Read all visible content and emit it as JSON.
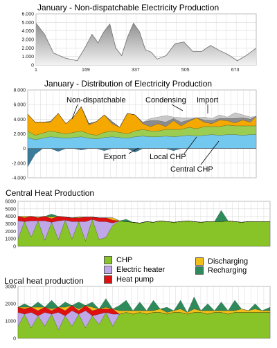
{
  "titles": {
    "t1": "January - Non-dispatchable Electricity Production",
    "t2": "January - Distribution of Electricity Production",
    "t3": "Central Heat Production",
    "t4": "Local heat production"
  },
  "colors": {
    "nondisp_line": "#777777",
    "nondisp_fill_dark": "#909090",
    "nondisp_fill_light": "#f2f2f2",
    "nondispatchable": "#f5a800",
    "condensing": "#8c8c8c",
    "import": "#c8c8c8",
    "local_chp": "#9acd52",
    "central_chp": "#73c8f0",
    "export": "#3a7a9a",
    "chp": "#88c428",
    "electric_heater": "#c0a8e8",
    "heat_pump": "#e01010",
    "discharging": "#f2be1a",
    "recharging": "#2e8a5a",
    "grid": "#d0d0d0"
  },
  "legend": [
    {
      "key": "chp",
      "label": "CHP"
    },
    {
      "key": "electric_heater",
      "label": "Electric heater"
    },
    {
      "key": "heat_pump",
      "label": "Heat pump"
    },
    {
      "key": "discharging",
      "label": "Discharging"
    },
    {
      "key": "recharging",
      "label": "Recharging"
    }
  ],
  "chart_data": [
    {
      "id": "c1",
      "type": "area",
      "title": "January - Non-dispatchable Electricity Production",
      "x_ticks": [
        "1",
        "169",
        "337",
        "505",
        "673"
      ],
      "y_ticks": [
        "0",
        "1.000",
        "2.000",
        "3.000",
        "4.000",
        "5.000",
        "6.000"
      ],
      "xlim": [
        1,
        744
      ],
      "ylim": [
        0,
        6000
      ],
      "grid": true,
      "series": [
        {
          "key": "nondisp",
          "x": [
            1,
            30,
            60,
            100,
            140,
            169,
            190,
            210,
            230,
            250,
            270,
            290,
            310,
            330,
            350,
            370,
            390,
            410,
            440,
            470,
            500,
            530,
            560,
            590,
            620,
            650,
            680,
            710,
            744
          ],
          "values": [
            4900,
            3600,
            1400,
            800,
            500,
            2200,
            3600,
            2600,
            3900,
            4800,
            2000,
            1100,
            3300,
            4900,
            3900,
            1800,
            1500,
            700,
            1100,
            2500,
            2700,
            1600,
            1600,
            2300,
            1700,
            1200,
            500,
            1100,
            2000
          ]
        }
      ]
    },
    {
      "id": "c2",
      "type": "area",
      "title": "January - Distribution of Electricity Production",
      "y_ticks": [
        "-4.000",
        "-2.000",
        "0",
        "2.000",
        "4.000",
        "6.000",
        "8.000"
      ],
      "xlim": [
        1,
        744
      ],
      "ylim": [
        -4000,
        8000
      ],
      "grid": true,
      "annotations": [
        "Non-dispatchable",
        "Condensing",
        "Import",
        "Export",
        "Local CHP",
        "Central CHP"
      ],
      "x": [
        1,
        25,
        50,
        75,
        100,
        125,
        150,
        175,
        200,
        225,
        250,
        275,
        300,
        325,
        350,
        375,
        400,
        425,
        450,
        475,
        500,
        525,
        550,
        575,
        600,
        625,
        650,
        675,
        700,
        725,
        744
      ],
      "series": [
        {
          "key": "central_chp",
          "values": [
            1500,
            1200,
            1400,
            1600,
            1500,
            1400,
            1500,
            1600,
            1400,
            1300,
            1500,
            1600,
            1500,
            1400,
            1600,
            1700,
            1600,
            1600,
            1700,
            1600,
            1700,
            1800,
            1700,
            1800,
            1900,
            1800,
            1900,
            1900,
            1800,
            1900,
            1900
          ]
        },
        {
          "key": "local_chp",
          "values": [
            900,
            600,
            700,
            800,
            700,
            600,
            700,
            800,
            600,
            500,
            700,
            800,
            700,
            600,
            800,
            900,
            800,
            800,
            900,
            1000,
            900,
            1100,
            1000,
            1200,
            1100,
            1200,
            1300,
            1200,
            1300,
            1200,
            1200
          ]
        },
        {
          "key": "nondispatchable",
          "values": [
            2300,
            1800,
            1500,
            1200,
            2600,
            1400,
            2100,
            3300,
            1200,
            1900,
            2400,
            1000,
            700,
            2800,
            2200,
            800,
            600,
            1000,
            400,
            1200,
            500,
            800,
            1500,
            600,
            400,
            900,
            600,
            400,
            800,
            500,
            1300
          ]
        },
        {
          "key": "condensing",
          "values": [
            0,
            0,
            0,
            100,
            0,
            0,
            0,
            0,
            200,
            0,
            0,
            300,
            0,
            0,
            0,
            200,
            800,
            400,
            600,
            300,
            500,
            200,
            0,
            300,
            400,
            200,
            300,
            600,
            300,
            400,
            0
          ]
        },
        {
          "key": "import",
          "values": [
            0,
            0,
            0,
            0,
            0,
            0,
            0,
            0,
            0,
            0,
            0,
            0,
            0,
            0,
            0,
            0,
            300,
            500,
            900,
            200,
            600,
            300,
            0,
            400,
            300,
            500,
            200,
            800,
            400,
            300,
            0
          ]
        },
        {
          "key": "export",
          "values": [
            -2500,
            -800,
            0,
            0,
            -400,
            0,
            0,
            -200,
            0,
            0,
            -300,
            0,
            0,
            0,
            -500,
            0,
            0,
            0,
            0,
            -300,
            0,
            0,
            0,
            0,
            0,
            0,
            0,
            0,
            0,
            0,
            0
          ]
        }
      ]
    },
    {
      "id": "c3",
      "type": "area",
      "title": "Central Heat Production",
      "y_ticks": [
        "0",
        "1000",
        "2000",
        "3000",
        "4000",
        "5000",
        "6000"
      ],
      "xlim": [
        1,
        744
      ],
      "ylim": [
        0,
        6000
      ],
      "grid": true,
      "x": [
        1,
        20,
        40,
        60,
        80,
        100,
        120,
        140,
        160,
        180,
        200,
        220,
        240,
        260,
        280,
        300,
        320,
        340,
        360,
        380,
        400,
        420,
        440,
        460,
        480,
        500,
        520,
        540,
        560,
        580,
        600,
        620,
        640,
        660,
        680,
        700,
        720,
        744
      ],
      "series": [
        {
          "key": "chp",
          "values": [
            1000,
            3300,
            1200,
            3400,
            800,
            3200,
            900,
            3500,
            1000,
            3300,
            700,
            3600,
            900,
            1200,
            2800,
            3400,
            3300,
            3200,
            3100,
            3300,
            3200,
            3400,
            3300,
            3200,
            3300,
            3400,
            3300,
            3200,
            3300,
            3300,
            3300,
            3400,
            3300,
            3200,
            3300,
            3300,
            3300,
            3300
          ]
        },
        {
          "key": "electric_heater",
          "values": [
            2400,
            0,
            2200,
            0,
            2600,
            0,
            2500,
            0,
            2300,
            0,
            2600,
            0,
            2400,
            2100,
            300,
            0,
            0,
            0,
            0,
            0,
            0,
            0,
            0,
            0,
            0,
            0,
            0,
            0,
            0,
            0,
            0,
            0,
            0,
            0,
            0,
            0,
            0,
            0
          ]
        },
        {
          "key": "heat_pump",
          "values": [
            600,
            500,
            600,
            400,
            600,
            500,
            600,
            400,
            500,
            500,
            600,
            300,
            500,
            500,
            400,
            0,
            0,
            0,
            0,
            0,
            0,
            0,
            0,
            0,
            0,
            0,
            0,
            0,
            0,
            0,
            0,
            0,
            0,
            0,
            0,
            0,
            0,
            0
          ]
        },
        {
          "key": "discharging",
          "values": [
            0,
            200,
            0,
            100,
            0,
            200,
            0,
            0,
            0,
            100,
            0,
            0,
            0,
            0,
            300,
            0,
            0,
            0,
            0,
            0,
            0,
            0,
            0,
            0,
            0,
            0,
            0,
            0,
            0,
            0,
            0,
            0,
            0,
            0,
            0,
            0,
            0,
            0
          ]
        },
        {
          "key": "recharging",
          "values": [
            0,
            0,
            0,
            0,
            0,
            400,
            0,
            0,
            0,
            0,
            0,
            0,
            0,
            0,
            0,
            0,
            300,
            0,
            0,
            0,
            0,
            0,
            0,
            0,
            0,
            0,
            0,
            0,
            0,
            0,
            1500,
            0,
            0,
            0,
            0,
            0,
            0,
            0
          ]
        }
      ]
    },
    {
      "id": "c4",
      "type": "area",
      "title": "Local heat production",
      "y_ticks": [
        "0",
        "1000",
        "2000",
        "3000"
      ],
      "xlim": [
        1,
        744
      ],
      "ylim": [
        0,
        3000
      ],
      "grid": true,
      "x": [
        1,
        20,
        40,
        60,
        80,
        100,
        120,
        140,
        160,
        180,
        200,
        220,
        240,
        260,
        280,
        300,
        320,
        340,
        360,
        380,
        400,
        420,
        440,
        460,
        480,
        500,
        520,
        540,
        560,
        580,
        600,
        620,
        640,
        660,
        680,
        700,
        720,
        744
      ],
      "series": [
        {
          "key": "chp",
          "values": [
            700,
            1400,
            600,
            1300,
            700,
            1400,
            500,
            1300,
            700,
            1400,
            600,
            1300,
            800,
            1500,
            700,
            1400,
            1500,
            1400,
            1500,
            1400,
            1500,
            1500,
            1400,
            1500,
            1500,
            1400,
            1500,
            1500,
            1400,
            1500,
            1500,
            1400,
            1500,
            1500,
            1500,
            1500,
            1500,
            1500
          ]
        },
        {
          "key": "electric_heater",
          "values": [
            800,
            0,
            900,
            0,
            800,
            0,
            1000,
            0,
            900,
            0,
            1000,
            0,
            600,
            0,
            700,
            0,
            0,
            0,
            0,
            0,
            0,
            0,
            0,
            0,
            0,
            0,
            0,
            0,
            0,
            0,
            0,
            0,
            0,
            0,
            0,
            0,
            0,
            0
          ]
        },
        {
          "key": "heat_pump",
          "values": [
            300,
            300,
            300,
            300,
            300,
            200,
            300,
            300,
            300,
            200,
            300,
            300,
            300,
            200,
            300,
            0,
            0,
            0,
            0,
            0,
            0,
            0,
            0,
            0,
            0,
            0,
            0,
            0,
            0,
            0,
            0,
            0,
            0,
            0,
            0,
            0,
            0,
            0
          ]
        },
        {
          "key": "discharging",
          "values": [
            0,
            100,
            0,
            200,
            0,
            100,
            0,
            200,
            0,
            100,
            0,
            200,
            0,
            100,
            0,
            200,
            100,
            200,
            100,
            200,
            100,
            200,
            100,
            100,
            200,
            100,
            200,
            100,
            200,
            100,
            100,
            200,
            100,
            200,
            100,
            200,
            100,
            100
          ]
        },
        {
          "key": "recharging",
          "values": [
            0,
            200,
            0,
            300,
            0,
            500,
            0,
            300,
            0,
            400,
            0,
            300,
            0,
            500,
            0,
            300,
            600,
            0,
            500,
            0,
            600,
            0,
            300,
            0,
            500,
            0,
            700,
            0,
            400,
            0,
            500,
            0,
            600,
            0,
            0,
            300,
            0,
            200
          ]
        }
      ]
    }
  ]
}
